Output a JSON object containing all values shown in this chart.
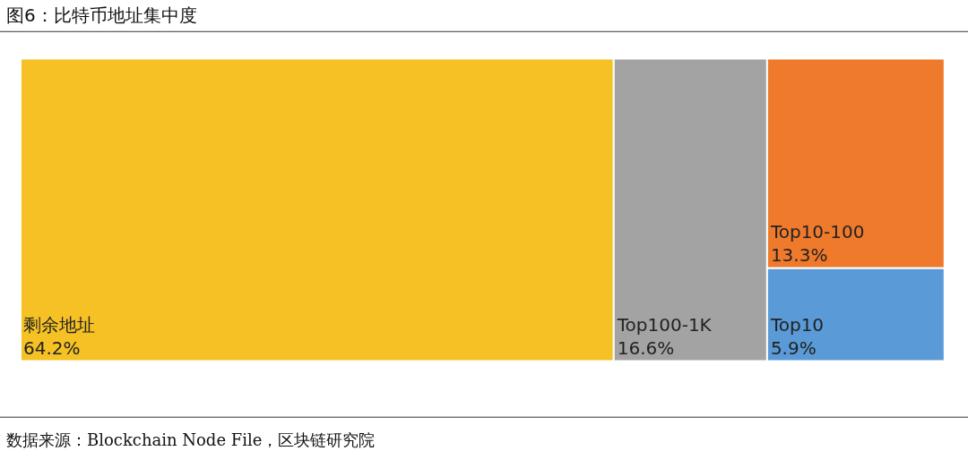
{
  "chart_data": {
    "type": "other",
    "title": "图6：比特币地址集中度",
    "categories": [
      "剩余地址",
      "Top100-1K",
      "Top10-100",
      "Top10"
    ],
    "values": [
      64.2,
      16.6,
      13.3,
      5.9
    ],
    "value_labels": [
      "64.2%",
      "16.6%",
      "13.3%",
      "5.9%"
    ],
    "colors": [
      "#f5c125",
      "#a3a3a3",
      "#ef7a2c",
      "#5a9ad6"
    ],
    "annotations": [
      "数据来源：Blockchain Node File，区块链研究院"
    ]
  }
}
